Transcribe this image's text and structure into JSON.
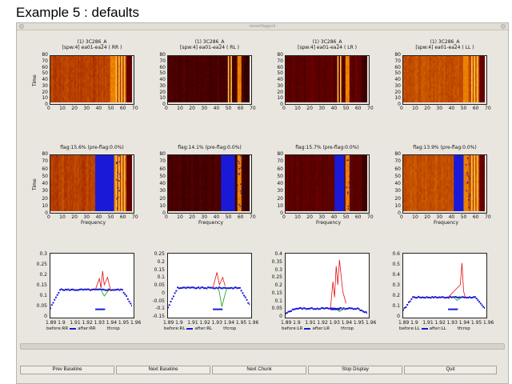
{
  "page": {
    "heading": "Example 5 :  defaults",
    "window_title": "viewerflaggerd"
  },
  "top_row": [
    {
      "title_line1": "(1) 3C286_A",
      "title_line2": "[spw:4] ea01-ea24  ( RR )"
    },
    {
      "title_line1": "(1) 3C286_A",
      "title_line2": "[spw:4] ea01-ea24  ( RL )"
    },
    {
      "title_line1": "(1) 3C286_A",
      "title_line2": "[spw:4] ea01-ea24  ( LR )"
    },
    {
      "title_line1": "(1) 3C286_A",
      "title_line2": "[spw:4] ea01-ea24  ( LL )"
    }
  ],
  "mid_row": [
    {
      "flag": "flag:15.6% (pre-flag:0.0%)"
    },
    {
      "flag": "flag:14.1% (pre-flag:0.0%)"
    },
    {
      "flag": "flag:15.7% (pre-flag:0.0%)"
    },
    {
      "flag": "flag:13.9% (pre-flag:0.0%)"
    }
  ],
  "heatmap_axes": {
    "ylabel": "Time",
    "xlabel": "Frequency",
    "yticks": [
      "80",
      "70",
      "60",
      "50",
      "40",
      "30",
      "20",
      "10",
      "0"
    ],
    "xticks": [
      "0",
      "10",
      "20",
      "30",
      "40",
      "50",
      "60",
      "70"
    ]
  },
  "line_plots": [
    {
      "yticks": [
        "0.3",
        "0.25",
        "0.2",
        "0.15",
        "0.1",
        "0.05",
        "0"
      ],
      "legend_before": "before:RR",
      "legend_after": "after:RR",
      "legend_extra": "tfcrop"
    },
    {
      "yticks": [
        "0.25",
        "0.2",
        "0.15",
        "0.1",
        "0.05",
        "0",
        "-0.05",
        "-0.1",
        "-0.15"
      ],
      "legend_before": "before:RL",
      "legend_after": "after:RL",
      "legend_extra": "tfcrop"
    },
    {
      "yticks": [
        "0.4",
        "0.35",
        "0.3",
        "0.25",
        "0.2",
        "0.15",
        "0.1",
        "0.05",
        "0"
      ],
      "legend_before": "before:LR",
      "legend_after": "after:LR",
      "legend_extra": "tfcrop"
    },
    {
      "yticks": [
        "0.6",
        "0.5",
        "0.4",
        "0.3",
        "0.2",
        "0.1",
        "0"
      ],
      "legend_before": "before:LL",
      "legend_after": "after:LL",
      "legend_extra": "tfcrop"
    }
  ],
  "line_xticks": [
    "1.89",
    "1.9",
    "1.91",
    "1.92",
    "1.93",
    "1.94",
    "1.95",
    "1.96"
  ],
  "buttons": {
    "prev_baseline": "Prev Baseline",
    "next_baseline": "Next Baseline",
    "next_chunk": "Next Chunk",
    "stop_display": "Stop Display",
    "quit": "Quit"
  },
  "colors": {
    "flag_blue": "#1a1ad6",
    "line_red": "#e01010",
    "line_green": "#10a010",
    "line_blue": "#1a1ad6"
  }
}
